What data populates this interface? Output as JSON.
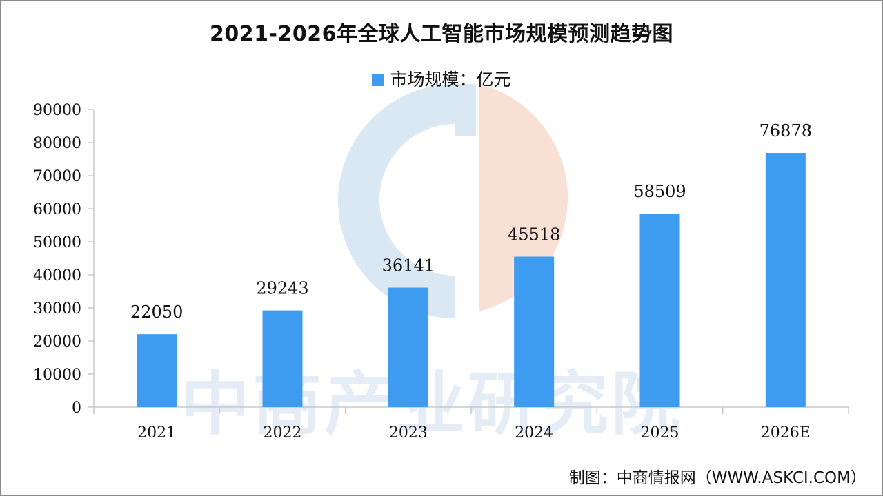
{
  "colors": {
    "bar": "#3d9cf0",
    "axis": "#c8c8c8",
    "watermark_blue": "#d6e6f2",
    "watermark_orange": "#f8ddd0"
  },
  "watermark": {
    "logo_icon": "zhongshang-logo-icon",
    "text": "中商产业研究院"
  },
  "source_text": "制图：中商情报网（WWW.ASKCI.COM）",
  "chart_data": {
    "type": "bar",
    "title": "2021-2026年全球人工智能市场规模预测趋势图",
    "legend": {
      "placement": "top-center",
      "label": "市场规模：亿元"
    },
    "categories": [
      "2021",
      "2022",
      "2023",
      "2024",
      "2025",
      "2026E"
    ],
    "series": [
      {
        "name": "市场规模：亿元",
        "values": [
          22050,
          29243,
          36141,
          45518,
          58509,
          76878
        ]
      }
    ],
    "data_labels": [
      "22050",
      "29243",
      "36141",
      "45518",
      "58509",
      "76878"
    ],
    "ylim": [
      0,
      90000
    ],
    "y_ticks": [
      0,
      10000,
      20000,
      30000,
      40000,
      50000,
      60000,
      70000,
      80000,
      90000
    ],
    "y_tick_labels": [
      "0",
      "10000",
      "20000",
      "30000",
      "40000",
      "50000",
      "60000",
      "70000",
      "80000",
      "90000"
    ],
    "grid": false
  }
}
